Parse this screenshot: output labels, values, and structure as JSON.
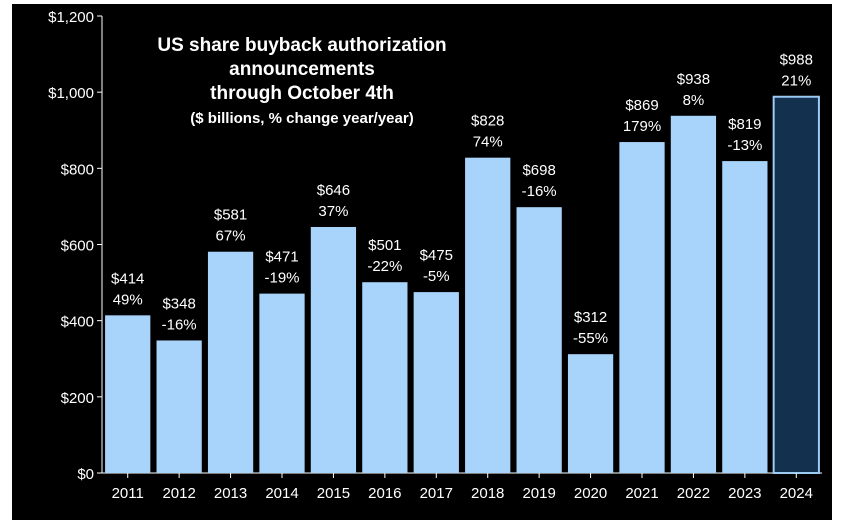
{
  "chart_data": {
    "type": "bar",
    "title": "US share buyback authorization announcements through October 4th",
    "title_lines": [
      "US share buyback authorization",
      "announcements",
      "through October 4th"
    ],
    "subtitle": "($ billions, % change year/year)",
    "xlabel": "",
    "ylabel": "",
    "ylim": [
      0,
      1200
    ],
    "yticks": [
      0,
      200,
      400,
      600,
      800,
      1000,
      1200
    ],
    "ytick_labels": [
      "$0",
      "$200",
      "$400",
      "$600",
      "$800",
      "$1,000",
      "$1,200"
    ],
    "categories": [
      "2011",
      "2012",
      "2013",
      "2014",
      "2015",
      "2016",
      "2017",
      "2018",
      "2019",
      "2020",
      "2021",
      "2022",
      "2023",
      "2024"
    ],
    "values": [
      414,
      348,
      581,
      471,
      646,
      501,
      475,
      828,
      698,
      312,
      869,
      938,
      819,
      988
    ],
    "value_labels": [
      "$414",
      "$348",
      "$581",
      "$471",
      "$646",
      "$501",
      "$475",
      "$828",
      "$698",
      "$312",
      "$869",
      "$938",
      "$819",
      "$988"
    ],
    "pct_labels": [
      "49%",
      "-16%",
      "67%",
      "-19%",
      "37%",
      "-22%",
      "-5%",
      "74%",
      "-16%",
      "-55%",
      "179%",
      "8%",
      "-13%",
      "21%"
    ],
    "highlight_index": 13,
    "grid": false,
    "legend": "none",
    "colors": {
      "background": "#000000",
      "bar": "#a8d4fb",
      "highlight_bar": "#13304f",
      "highlight_border": "#9ccbf4",
      "text": "#ffffff",
      "axis": "#ffffff"
    }
  }
}
